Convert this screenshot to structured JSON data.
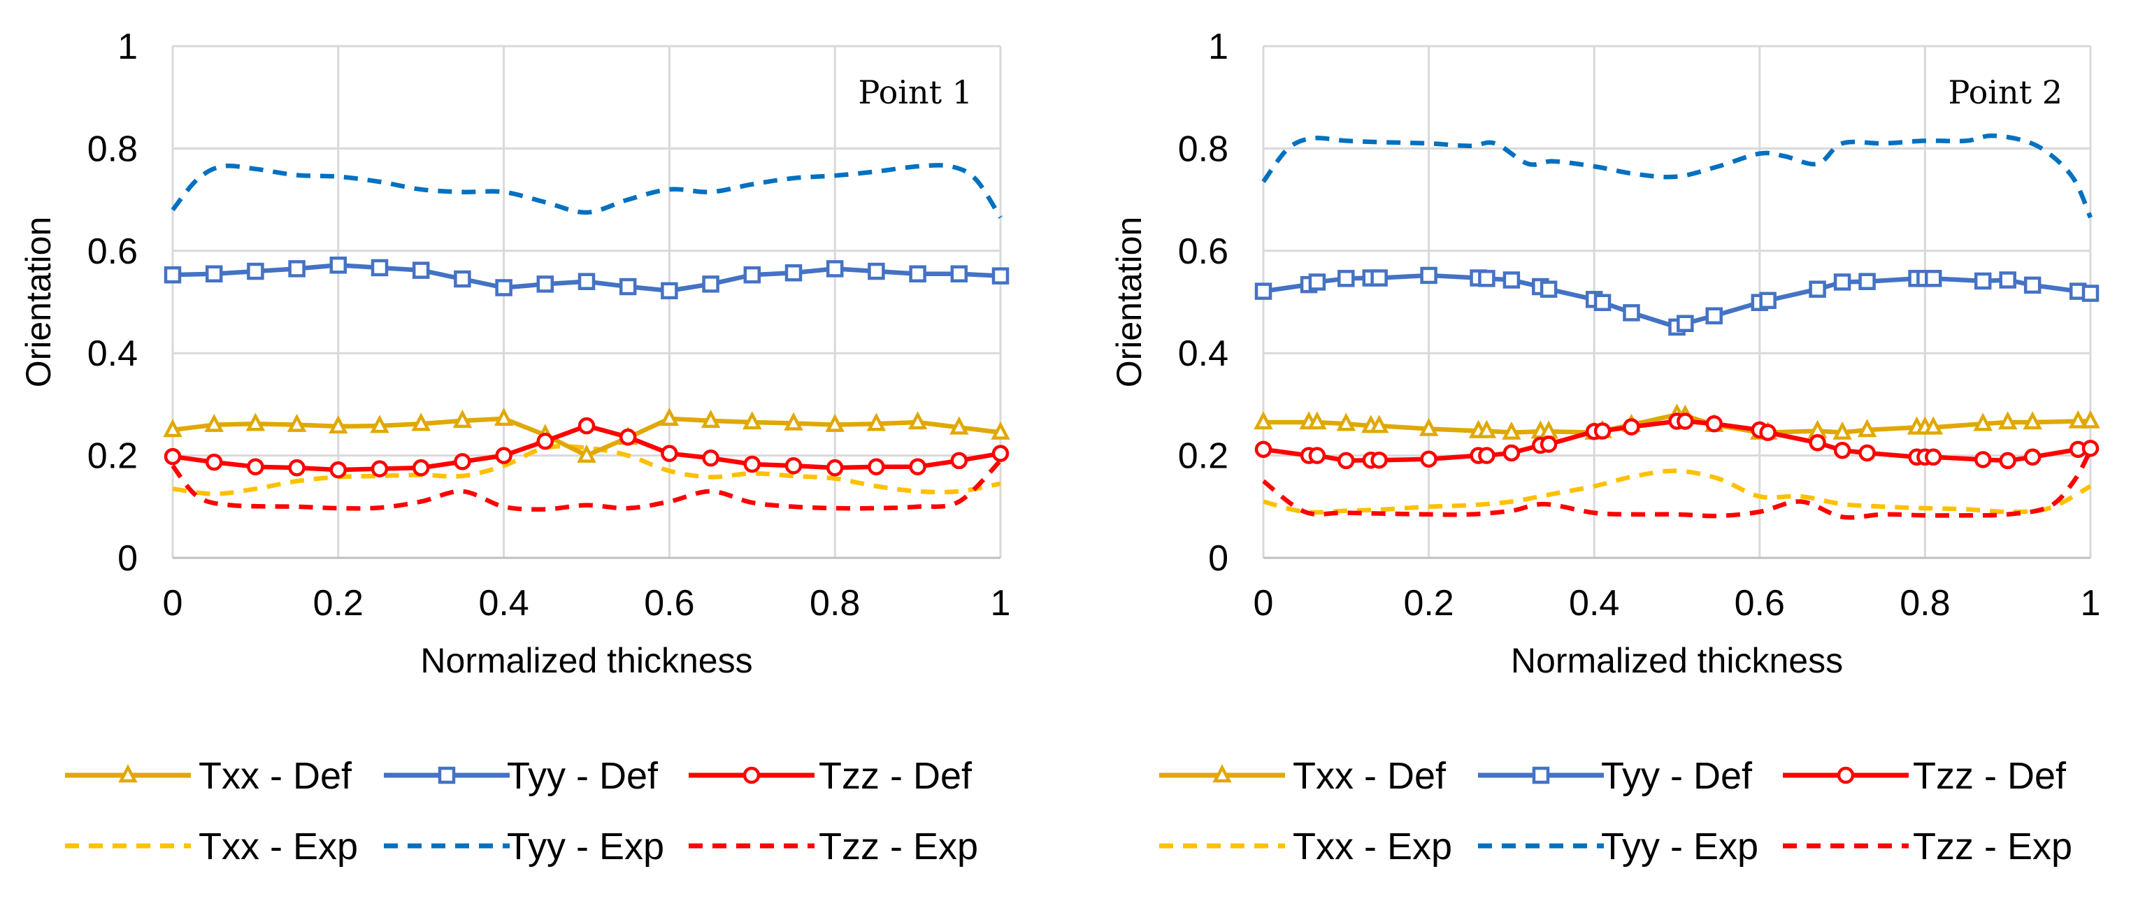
{
  "series_styles": {
    "Txx - Def": {
      "color": "#E0A800",
      "marker": "triangle",
      "dash": false
    },
    "Tyy - Def": {
      "color": "#4472C4",
      "marker": "square",
      "dash": false
    },
    "Tzz - Def": {
      "color": "#FF0000",
      "marker": "circle",
      "dash": false
    },
    "Txx - Exp": {
      "color": "#FFC000",
      "marker": "none",
      "dash": true
    },
    "Tyy - Exp": {
      "color": "#0070C0",
      "marker": "none",
      "dash": true
    },
    "Tzz - Exp": {
      "color": "#FF0000",
      "marker": "none",
      "dash": true
    }
  },
  "legend": [
    "Txx - Def",
    "Tyy - Def",
    "Tzz - Def",
    "Txx - Exp",
    "Tyy - Exp",
    "Tzz - Exp"
  ],
  "chart_data": [
    {
      "type": "line",
      "annotation": "Point 1",
      "xlabel": "Normalized thickness",
      "ylabel": "Orientation",
      "xlim": [
        0,
        1
      ],
      "ylim": [
        0,
        1
      ],
      "xticks": [
        "0",
        "0.2",
        "0.4",
        "0.6",
        "0.8",
        "1"
      ],
      "yticks": [
        "0",
        "0.2",
        "0.4",
        "0.6",
        "0.8",
        "1"
      ],
      "grid": true,
      "legend_position": "bottom",
      "series": [
        {
          "name": "Txx - Def",
          "x": [
            0,
            0.05,
            0.1,
            0.15,
            0.2,
            0.25,
            0.3,
            0.35,
            0.4,
            0.45,
            0.5,
            0.55,
            0.6,
            0.65,
            0.7,
            0.75,
            0.8,
            0.85,
            0.9,
            0.95,
            1
          ],
          "y": [
            0.25,
            0.26,
            0.262,
            0.26,
            0.257,
            0.258,
            0.262,
            0.268,
            0.272,
            0.24,
            0.2,
            0.235,
            0.272,
            0.268,
            0.265,
            0.263,
            0.26,
            0.262,
            0.265,
            0.255,
            0.245
          ]
        },
        {
          "name": "Tyy - Def",
          "x": [
            0,
            0.05,
            0.1,
            0.15,
            0.2,
            0.25,
            0.3,
            0.35,
            0.4,
            0.45,
            0.5,
            0.55,
            0.6,
            0.65,
            0.7,
            0.75,
            0.8,
            0.85,
            0.9,
            0.95,
            1
          ],
          "y": [
            0.553,
            0.555,
            0.56,
            0.565,
            0.572,
            0.567,
            0.562,
            0.545,
            0.528,
            0.535,
            0.54,
            0.53,
            0.522,
            0.535,
            0.553,
            0.557,
            0.565,
            0.56,
            0.555,
            0.555,
            0.551
          ]
        },
        {
          "name": "Tzz - Def",
          "x": [
            0,
            0.05,
            0.1,
            0.15,
            0.2,
            0.25,
            0.3,
            0.35,
            0.4,
            0.45,
            0.5,
            0.55,
            0.6,
            0.65,
            0.7,
            0.75,
            0.8,
            0.85,
            0.9,
            0.95,
            1
          ],
          "y": [
            0.198,
            0.187,
            0.178,
            0.176,
            0.172,
            0.174,
            0.176,
            0.188,
            0.2,
            0.228,
            0.258,
            0.236,
            0.204,
            0.195,
            0.183,
            0.18,
            0.176,
            0.178,
            0.178,
            0.19,
            0.204
          ]
        },
        {
          "name": "Txx - Exp",
          "x": [
            0,
            0.05,
            0.1,
            0.15,
            0.2,
            0.25,
            0.3,
            0.35,
            0.4,
            0.45,
            0.5,
            0.55,
            0.6,
            0.65,
            0.7,
            0.75,
            0.8,
            0.85,
            0.9,
            0.95,
            1
          ],
          "y": [
            0.135,
            0.125,
            0.135,
            0.15,
            0.158,
            0.16,
            0.162,
            0.16,
            0.18,
            0.215,
            0.215,
            0.2,
            0.17,
            0.158,
            0.165,
            0.16,
            0.155,
            0.14,
            0.13,
            0.13,
            0.145
          ]
        },
        {
          "name": "Tyy - Exp",
          "x": [
            0,
            0.03,
            0.06,
            0.1,
            0.15,
            0.2,
            0.25,
            0.3,
            0.35,
            0.4,
            0.45,
            0.5,
            0.55,
            0.6,
            0.65,
            0.7,
            0.75,
            0.8,
            0.85,
            0.9,
            0.94,
            0.97,
            1
          ],
          "y": [
            0.68,
            0.74,
            0.765,
            0.76,
            0.748,
            0.745,
            0.735,
            0.72,
            0.715,
            0.715,
            0.695,
            0.675,
            0.7,
            0.72,
            0.715,
            0.73,
            0.742,
            0.747,
            0.755,
            0.765,
            0.765,
            0.74,
            0.665
          ]
        },
        {
          "name": "Tzz - Exp",
          "x": [
            0,
            0.03,
            0.07,
            0.15,
            0.2,
            0.25,
            0.3,
            0.35,
            0.4,
            0.45,
            0.5,
            0.55,
            0.6,
            0.65,
            0.7,
            0.75,
            0.8,
            0.85,
            0.9,
            0.95,
            1
          ],
          "y": [
            0.18,
            0.12,
            0.103,
            0.1,
            0.097,
            0.098,
            0.11,
            0.13,
            0.1,
            0.095,
            0.103,
            0.097,
            0.11,
            0.13,
            0.108,
            0.1,
            0.097,
            0.097,
            0.1,
            0.11,
            0.19
          ]
        }
      ]
    },
    {
      "type": "line",
      "annotation": "Point 2",
      "xlabel": "Normalized thickness",
      "ylabel": "Orientation",
      "xlim": [
        0,
        1
      ],
      "ylim": [
        0,
        1
      ],
      "xticks": [
        "0",
        "0.2",
        "0.4",
        "0.6",
        "0.8",
        "1"
      ],
      "yticks": [
        "0",
        "0.2",
        "0.4",
        "0.6",
        "0.8",
        "1"
      ],
      "grid": true,
      "legend_position": "bottom",
      "series": [
        {
          "name": "Txx - Def",
          "x": [
            0,
            0.055,
            0.065,
            0.1,
            0.13,
            0.14,
            0.2,
            0.26,
            0.27,
            0.3,
            0.335,
            0.345,
            0.4,
            0.41,
            0.445,
            0.5,
            0.51,
            0.545,
            0.6,
            0.61,
            0.67,
            0.7,
            0.73,
            0.79,
            0.8,
            0.81,
            0.87,
            0.9,
            0.93,
            0.985,
            1
          ],
          "y": [
            0.265,
            0.265,
            0.265,
            0.262,
            0.258,
            0.258,
            0.252,
            0.248,
            0.248,
            0.245,
            0.247,
            0.247,
            0.245,
            0.248,
            0.26,
            0.28,
            0.278,
            0.26,
            0.245,
            0.245,
            0.248,
            0.245,
            0.25,
            0.255,
            0.255,
            0.255,
            0.262,
            0.265,
            0.265,
            0.267,
            0.267
          ]
        },
        {
          "name": "Tyy - Def",
          "x": [
            0,
            0.055,
            0.065,
            0.1,
            0.13,
            0.14,
            0.2,
            0.26,
            0.27,
            0.3,
            0.335,
            0.345,
            0.4,
            0.41,
            0.445,
            0.5,
            0.51,
            0.545,
            0.6,
            0.61,
            0.67,
            0.7,
            0.73,
            0.79,
            0.8,
            0.81,
            0.87,
            0.9,
            0.93,
            0.985,
            1
          ],
          "y": [
            0.521,
            0.534,
            0.539,
            0.546,
            0.547,
            0.547,
            0.552,
            0.547,
            0.546,
            0.543,
            0.53,
            0.525,
            0.505,
            0.499,
            0.479,
            0.451,
            0.458,
            0.473,
            0.499,
            0.503,
            0.525,
            0.539,
            0.54,
            0.546,
            0.546,
            0.546,
            0.541,
            0.543,
            0.533,
            0.521,
            0.517
          ]
        },
        {
          "name": "Tzz - Def",
          "x": [
            0,
            0.055,
            0.065,
            0.1,
            0.13,
            0.14,
            0.2,
            0.26,
            0.27,
            0.3,
            0.335,
            0.345,
            0.4,
            0.41,
            0.445,
            0.5,
            0.51,
            0.545,
            0.6,
            0.61,
            0.67,
            0.7,
            0.73,
            0.79,
            0.8,
            0.81,
            0.87,
            0.9,
            0.93,
            0.985,
            1
          ],
          "y": [
            0.212,
            0.2,
            0.2,
            0.19,
            0.191,
            0.191,
            0.193,
            0.2,
            0.2,
            0.205,
            0.22,
            0.222,
            0.247,
            0.248,
            0.256,
            0.267,
            0.267,
            0.262,
            0.25,
            0.245,
            0.225,
            0.21,
            0.205,
            0.197,
            0.197,
            0.197,
            0.192,
            0.19,
            0.197,
            0.212,
            0.214
          ]
        },
        {
          "name": "Txx - Exp",
          "x": [
            0,
            0.05,
            0.1,
            0.15,
            0.2,
            0.25,
            0.3,
            0.35,
            0.4,
            0.45,
            0.5,
            0.55,
            0.6,
            0.65,
            0.7,
            0.75,
            0.8,
            0.85,
            0.9,
            0.95,
            1
          ],
          "y": [
            0.11,
            0.09,
            0.092,
            0.095,
            0.1,
            0.103,
            0.11,
            0.125,
            0.14,
            0.16,
            0.17,
            0.155,
            0.12,
            0.12,
            0.105,
            0.1,
            0.097,
            0.095,
            0.09,
            0.097,
            0.14
          ]
        },
        {
          "name": "Tyy - Exp",
          "x": [
            0,
            0.03,
            0.06,
            0.1,
            0.15,
            0.2,
            0.25,
            0.28,
            0.32,
            0.35,
            0.4,
            0.45,
            0.5,
            0.55,
            0.6,
            0.63,
            0.67,
            0.7,
            0.75,
            0.8,
            0.85,
            0.88,
            0.92,
            0.95,
            0.98,
            1
          ],
          "y": [
            0.735,
            0.8,
            0.82,
            0.815,
            0.812,
            0.81,
            0.805,
            0.81,
            0.77,
            0.775,
            0.765,
            0.75,
            0.745,
            0.765,
            0.79,
            0.785,
            0.77,
            0.81,
            0.81,
            0.815,
            0.815,
            0.825,
            0.815,
            0.79,
            0.74,
            0.665
          ]
        },
        {
          "name": "Tzz - Exp",
          "x": [
            0,
            0.05,
            0.1,
            0.2,
            0.25,
            0.3,
            0.34,
            0.4,
            0.45,
            0.5,
            0.55,
            0.6,
            0.65,
            0.7,
            0.75,
            0.8,
            0.85,
            0.9,
            0.95,
            0.98,
            1
          ],
          "y": [
            0.15,
            0.09,
            0.088,
            0.085,
            0.085,
            0.092,
            0.105,
            0.088,
            0.085,
            0.085,
            0.082,
            0.09,
            0.11,
            0.08,
            0.085,
            0.083,
            0.083,
            0.085,
            0.1,
            0.15,
            0.21
          ]
        }
      ]
    }
  ]
}
